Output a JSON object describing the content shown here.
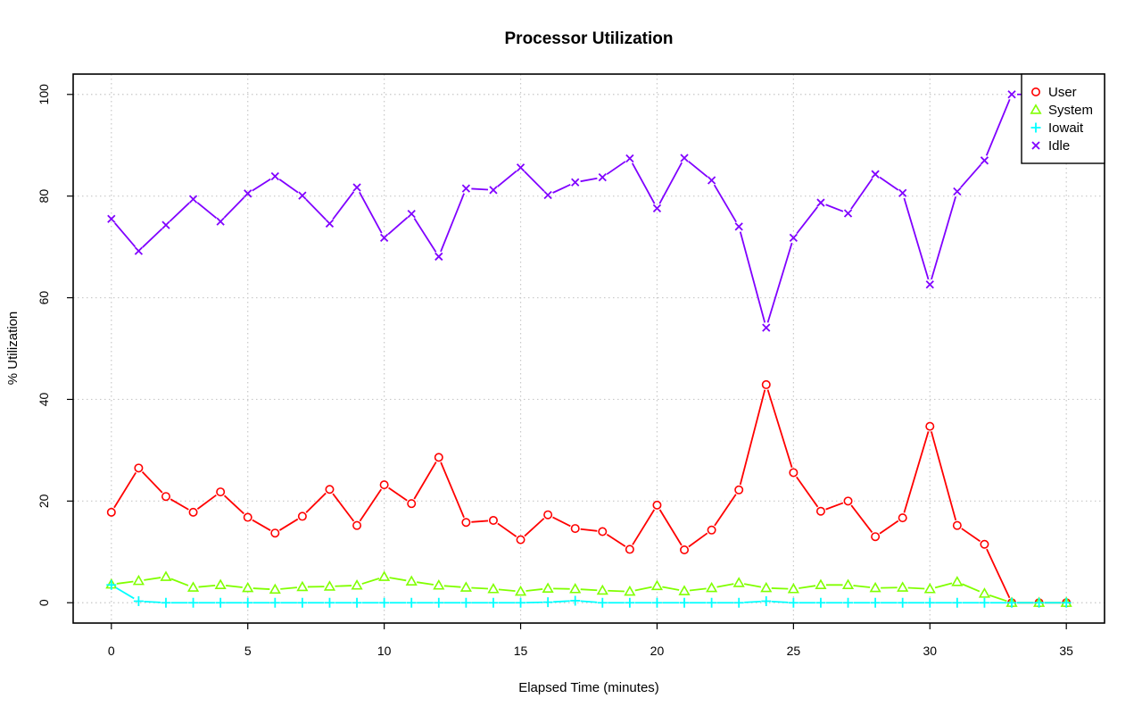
{
  "chart_data": {
    "type": "line",
    "title": "Processor Utilization",
    "xlabel": "Elapsed Time (minutes)",
    "ylabel": "% Utilization",
    "xlim": [
      -1.4,
      36.4
    ],
    "ylim": [
      -4,
      104
    ],
    "xticks": [
      0,
      5,
      10,
      15,
      20,
      25,
      30,
      35
    ],
    "yticks": [
      0,
      20,
      40,
      60,
      80,
      100
    ],
    "grid": true,
    "legend_position": "top-right",
    "x": [
      0,
      1,
      2,
      3,
      4,
      5,
      6,
      7,
      8,
      9,
      10,
      11,
      12,
      13,
      14,
      15,
      16,
      17,
      18,
      19,
      20,
      21,
      22,
      23,
      24,
      25,
      26,
      27,
      28,
      29,
      30,
      31,
      32,
      33,
      34,
      35
    ],
    "series": [
      {
        "name": "User",
        "color": "#ff0000",
        "marker": "circle",
        "values": [
          17.8,
          26.5,
          20.9,
          17.8,
          21.8,
          16.8,
          13.7,
          17.0,
          22.3,
          15.2,
          23.2,
          19.5,
          28.6,
          15.8,
          16.2,
          12.4,
          17.3,
          14.6,
          14.0,
          10.5,
          19.2,
          10.4,
          14.3,
          22.2,
          42.9,
          25.6,
          18.0,
          20.0,
          13.0,
          16.7,
          34.7,
          15.2,
          11.5,
          0,
          0,
          0
        ]
      },
      {
        "name": "System",
        "color": "#80ff00",
        "marker": "triangle",
        "values": [
          3.6,
          4.3,
          5.1,
          3.0,
          3.5,
          2.9,
          2.6,
          3.1,
          3.2,
          3.4,
          5.1,
          4.2,
          3.4,
          3.0,
          2.7,
          2.2,
          2.8,
          2.7,
          2.4,
          2.2,
          3.3,
          2.3,
          2.9,
          3.9,
          2.9,
          2.7,
          3.5,
          3.5,
          2.9,
          3.0,
          2.7,
          4.1,
          1.8,
          0,
          0,
          0
        ]
      },
      {
        "name": "Iowait",
        "color": "#00ffff",
        "marker": "plus",
        "values": [
          3.5,
          0.3,
          0,
          0,
          0,
          0,
          0,
          0,
          0,
          0,
          0,
          0,
          0,
          0,
          0,
          0,
          0.1,
          0.4,
          0,
          0,
          0,
          0,
          0,
          0,
          0.3,
          0,
          0,
          0,
          0,
          0,
          0,
          0,
          0,
          0,
          0,
          0
        ]
      },
      {
        "name": "Idle",
        "color": "#8000ff",
        "marker": "cross",
        "values": [
          75.5,
          69.2,
          74.3,
          79.4,
          75.0,
          80.5,
          83.9,
          80.1,
          74.6,
          81.7,
          71.8,
          76.5,
          68.1,
          81.5,
          81.2,
          85.6,
          80.2,
          82.7,
          83.7,
          87.4,
          77.6,
          87.5,
          83.1,
          74.0,
          54.1,
          71.8,
          78.7,
          76.6,
          84.3,
          80.6,
          62.6,
          80.9,
          87.0,
          100,
          100,
          100
        ]
      }
    ]
  }
}
